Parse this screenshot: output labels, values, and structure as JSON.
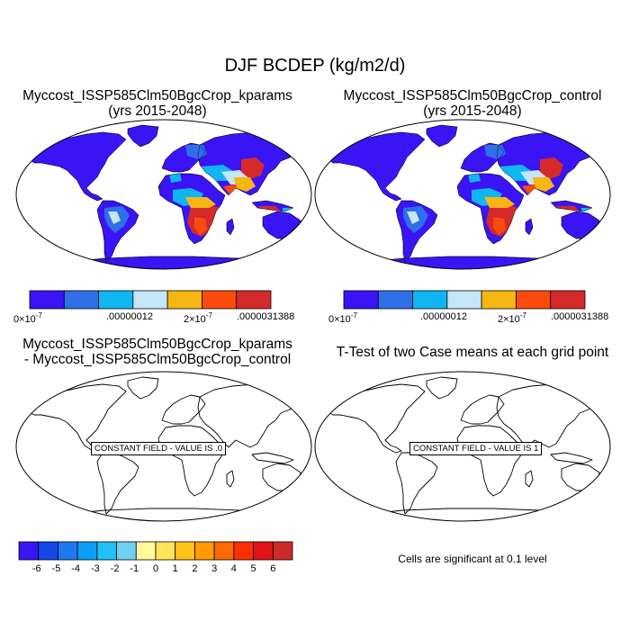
{
  "figure": {
    "title": "DJF BCDEP (kg/m2/d)"
  },
  "panels": [
    {
      "id": "kparams",
      "title_line1": "Myccost_ISSP585Clm50BgcCrop_kparams",
      "title_line2": "(yrs 2015-2048)",
      "field": "filled"
    },
    {
      "id": "control",
      "title_line1": "Myccost_ISSP585Clm50BgcCrop_control",
      "title_line2": "(yrs 2015-2048)",
      "field": "filled"
    },
    {
      "id": "difference",
      "title_line1": "Myccost_ISSP585Clm50BgcCrop_kparams",
      "title_line2": "- Myccost_ISSP585Clm50BgcCrop_control",
      "field": "outline",
      "message": "CONSTANT FIELD - VALUE IS .0"
    },
    {
      "id": "ttest",
      "title_line1": "T-Test of two Case means at each grid point",
      "title_line2": "",
      "field": "outline",
      "message": "CONSTANT FIELD - VALUE IS 1"
    }
  ],
  "colorbar_top": {
    "colors": [
      "#3a14f5",
      "#2f6fe8",
      "#10b6f2",
      "#c4e6f7",
      "#f6b614",
      "#fb4b0c",
      "#d42a2a"
    ],
    "labels": [
      "0×10",
      ".00000012",
      "2×10",
      ".0000031388"
    ],
    "label_exponent": "-7"
  },
  "colorbar_bottom": {
    "colors": [
      "#3a14f5",
      "#1446e8",
      "#1f78f0",
      "#0a9ef5",
      "#1fc0f5",
      "#6fd0f2",
      "#fffa9e",
      "#ffe45a",
      "#ffc21a",
      "#ff9a00",
      "#ff6a00",
      "#ff3000",
      "#e01414",
      "#cc2a2a"
    ],
    "labels": [
      "-6",
      "-5",
      "-4",
      "-3",
      "-2",
      "-1",
      "0",
      "1",
      "2",
      "3",
      "4",
      "5",
      "6"
    ]
  },
  "significance_note": "Cells are significant at 0.1 level",
  "colors": {
    "ocean": "#ffffff",
    "land_base": "#3a14f5",
    "med": "#2f6fe8",
    "mid": "#10b6f2",
    "light": "#c4e6f7",
    "orange": "#f6b614",
    "red": "#d42a2a",
    "redorange": "#fb4b0c"
  }
}
